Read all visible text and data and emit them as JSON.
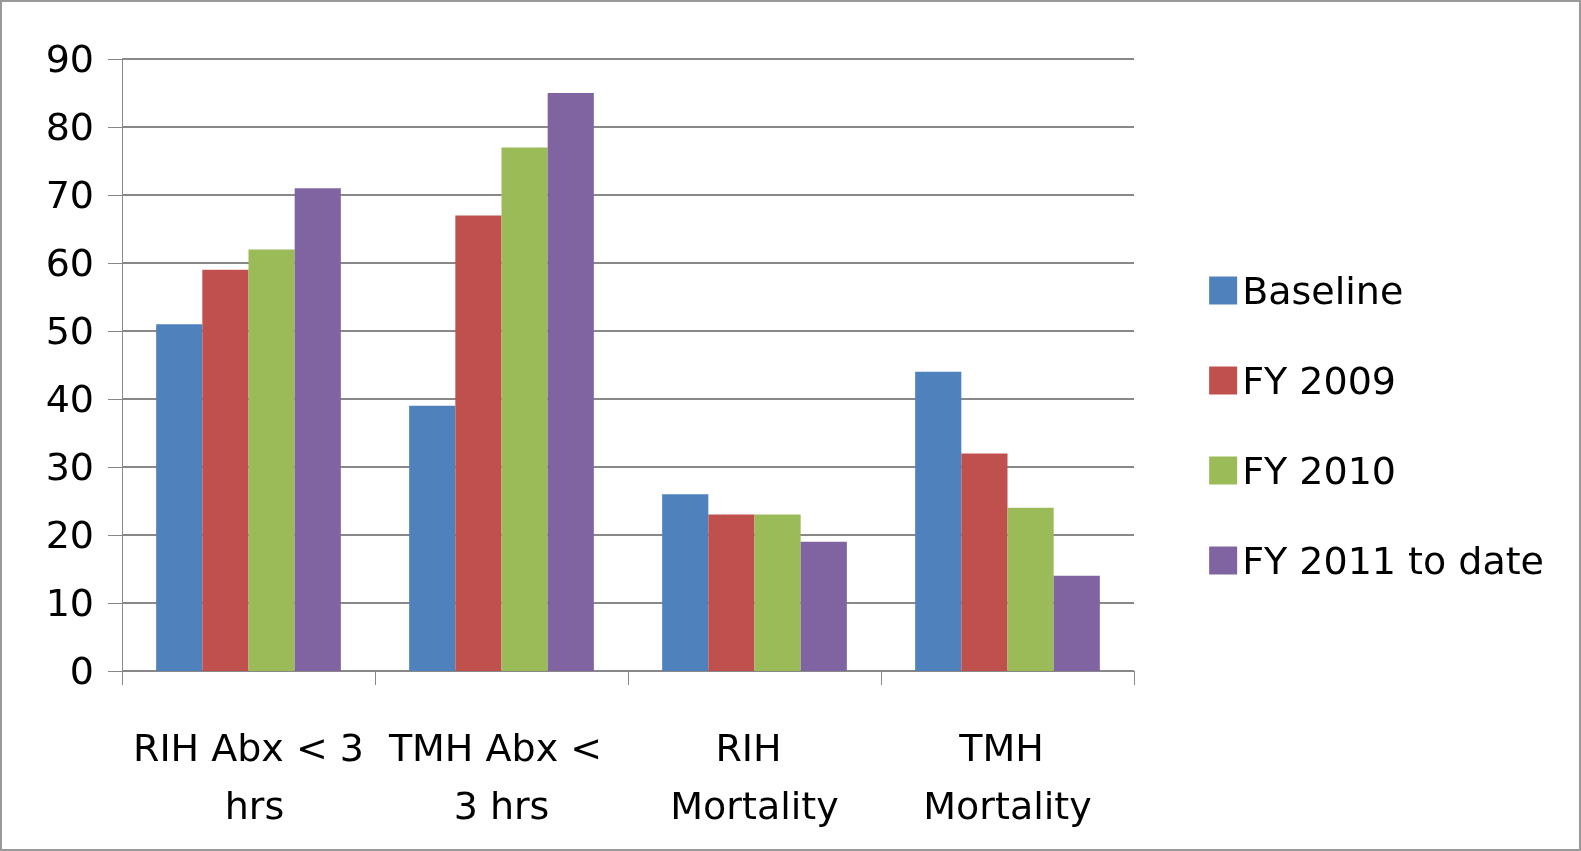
{
  "chart_data": {
    "type": "bar",
    "categories": [
      "RIH Abx < 3 hrs",
      "TMH Abx < 3 hrs",
      "RIH Mortality",
      "TMH Mortality"
    ],
    "series": [
      {
        "name": "Baseline",
        "color": "#4f81bd",
        "values": [
          51,
          39,
          26,
          44
        ]
      },
      {
        "name": "FY 2009",
        "color": "#c0504d",
        "values": [
          59,
          67,
          23,
          32
        ]
      },
      {
        "name": "FY 2010",
        "color": "#9bbb59",
        "values": [
          62,
          77,
          23,
          24
        ]
      },
      {
        "name": "FY 2011 to date",
        "color": "#8064a2",
        "values": [
          71,
          85,
          19,
          14
        ]
      }
    ],
    "ylim": [
      0,
      90
    ],
    "yticks": [
      0,
      10,
      20,
      30,
      40,
      50,
      60,
      70,
      80,
      90
    ],
    "grid": "y",
    "legend": "right"
  }
}
